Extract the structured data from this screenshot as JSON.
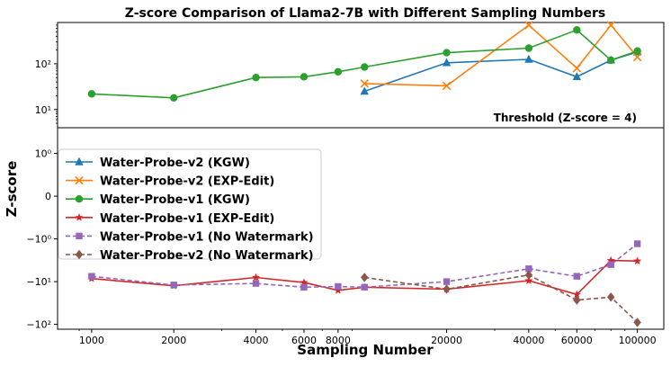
{
  "chart_data": {
    "type": "line",
    "title": "Z-score Comparison of Llama2-7B with Different Sampling Numbers",
    "xlabel": "Sampling Number",
    "ylabel": "Z-score",
    "xscale": "log",
    "threshold_label": "Threshold (Z-score = 4)",
    "threshold_value": 4,
    "x_ticks": [
      1000,
      2000,
      4000,
      6000,
      8000,
      20000,
      40000,
      60000,
      100000
    ],
    "x_tick_labels": [
      "1000",
      "2000",
      "4000",
      "6000",
      "8000",
      "20000",
      "40000",
      "60000",
      "100000"
    ],
    "upper_panel": {
      "yscale": "log",
      "ylim": [
        4,
        800
      ],
      "y_ticks": [
        10,
        100
      ],
      "y_tick_labels": [
        "10¹",
        "10²"
      ]
    },
    "lower_panel": {
      "yscale": "symlog",
      "ylim": [
        -130,
        4
      ],
      "y_ticks": [
        1,
        0,
        -1,
        -10,
        -100
      ],
      "y_tick_labels": [
        "10⁰",
        "0",
        "−10⁰",
        "−10¹",
        "−10²"
      ]
    },
    "series": [
      {
        "name": "Water-Probe-v2 (KGW)",
        "color": "#1f77b4",
        "marker": "triangle",
        "linestyle": "solid",
        "x": [
          10000,
          20000,
          40000,
          60000,
          80000,
          100000
        ],
        "y": [
          25,
          105,
          125,
          52,
          120,
          180
        ]
      },
      {
        "name": "Water-Probe-v2 (EXP-Edit)",
        "color": "#ff7f0e",
        "marker": "x",
        "linestyle": "solid",
        "x": [
          10000,
          20000,
          40000,
          60000,
          80000,
          100000
        ],
        "y": [
          37,
          33,
          700,
          80,
          700,
          140
        ]
      },
      {
        "name": "Water-Probe-v1 (KGW)",
        "color": "#2ca02c",
        "marker": "circle",
        "linestyle": "solid",
        "x": [
          1000,
          2000,
          4000,
          6000,
          8000,
          10000,
          20000,
          40000,
          60000,
          80000,
          100000
        ],
        "y": [
          22,
          18,
          50,
          52,
          67,
          85,
          175,
          220,
          550,
          120,
          190
        ]
      },
      {
        "name": "Water-Probe-v1 (EXP-Edit)",
        "color": "#d62728",
        "marker": "star",
        "linestyle": "solid",
        "x": [
          1000,
          2000,
          4000,
          6000,
          8000,
          10000,
          20000,
          40000,
          60000,
          80000,
          100000
        ],
        "y": [
          -8.5,
          -12.5,
          -8,
          -10.5,
          -16,
          -13.5,
          -15,
          -9.5,
          -20,
          -3.2,
          -3.3
        ]
      },
      {
        "name": "Water-Probe-v1 (No Watermark)",
        "color": "#9467bd",
        "marker": "square",
        "linestyle": "dashed",
        "x": [
          1000,
          2000,
          4000,
          6000,
          8000,
          10000,
          20000,
          40000,
          60000,
          80000,
          100000
        ],
        "y": [
          -7.5,
          -12,
          -11,
          -13.5,
          -13,
          -13.5,
          -10,
          -5,
          -7.5,
          -4,
          -1.3
        ]
      },
      {
        "name": "Water-Probe-v2 (No Watermark)",
        "color": "#8c564b",
        "marker": "diamond",
        "linestyle": "dashed",
        "x": [
          10000,
          20000,
          40000,
          60000,
          80000,
          100000
        ],
        "y": [
          -8,
          -15,
          -7,
          -27,
          -23,
          -90
        ]
      }
    ]
  }
}
